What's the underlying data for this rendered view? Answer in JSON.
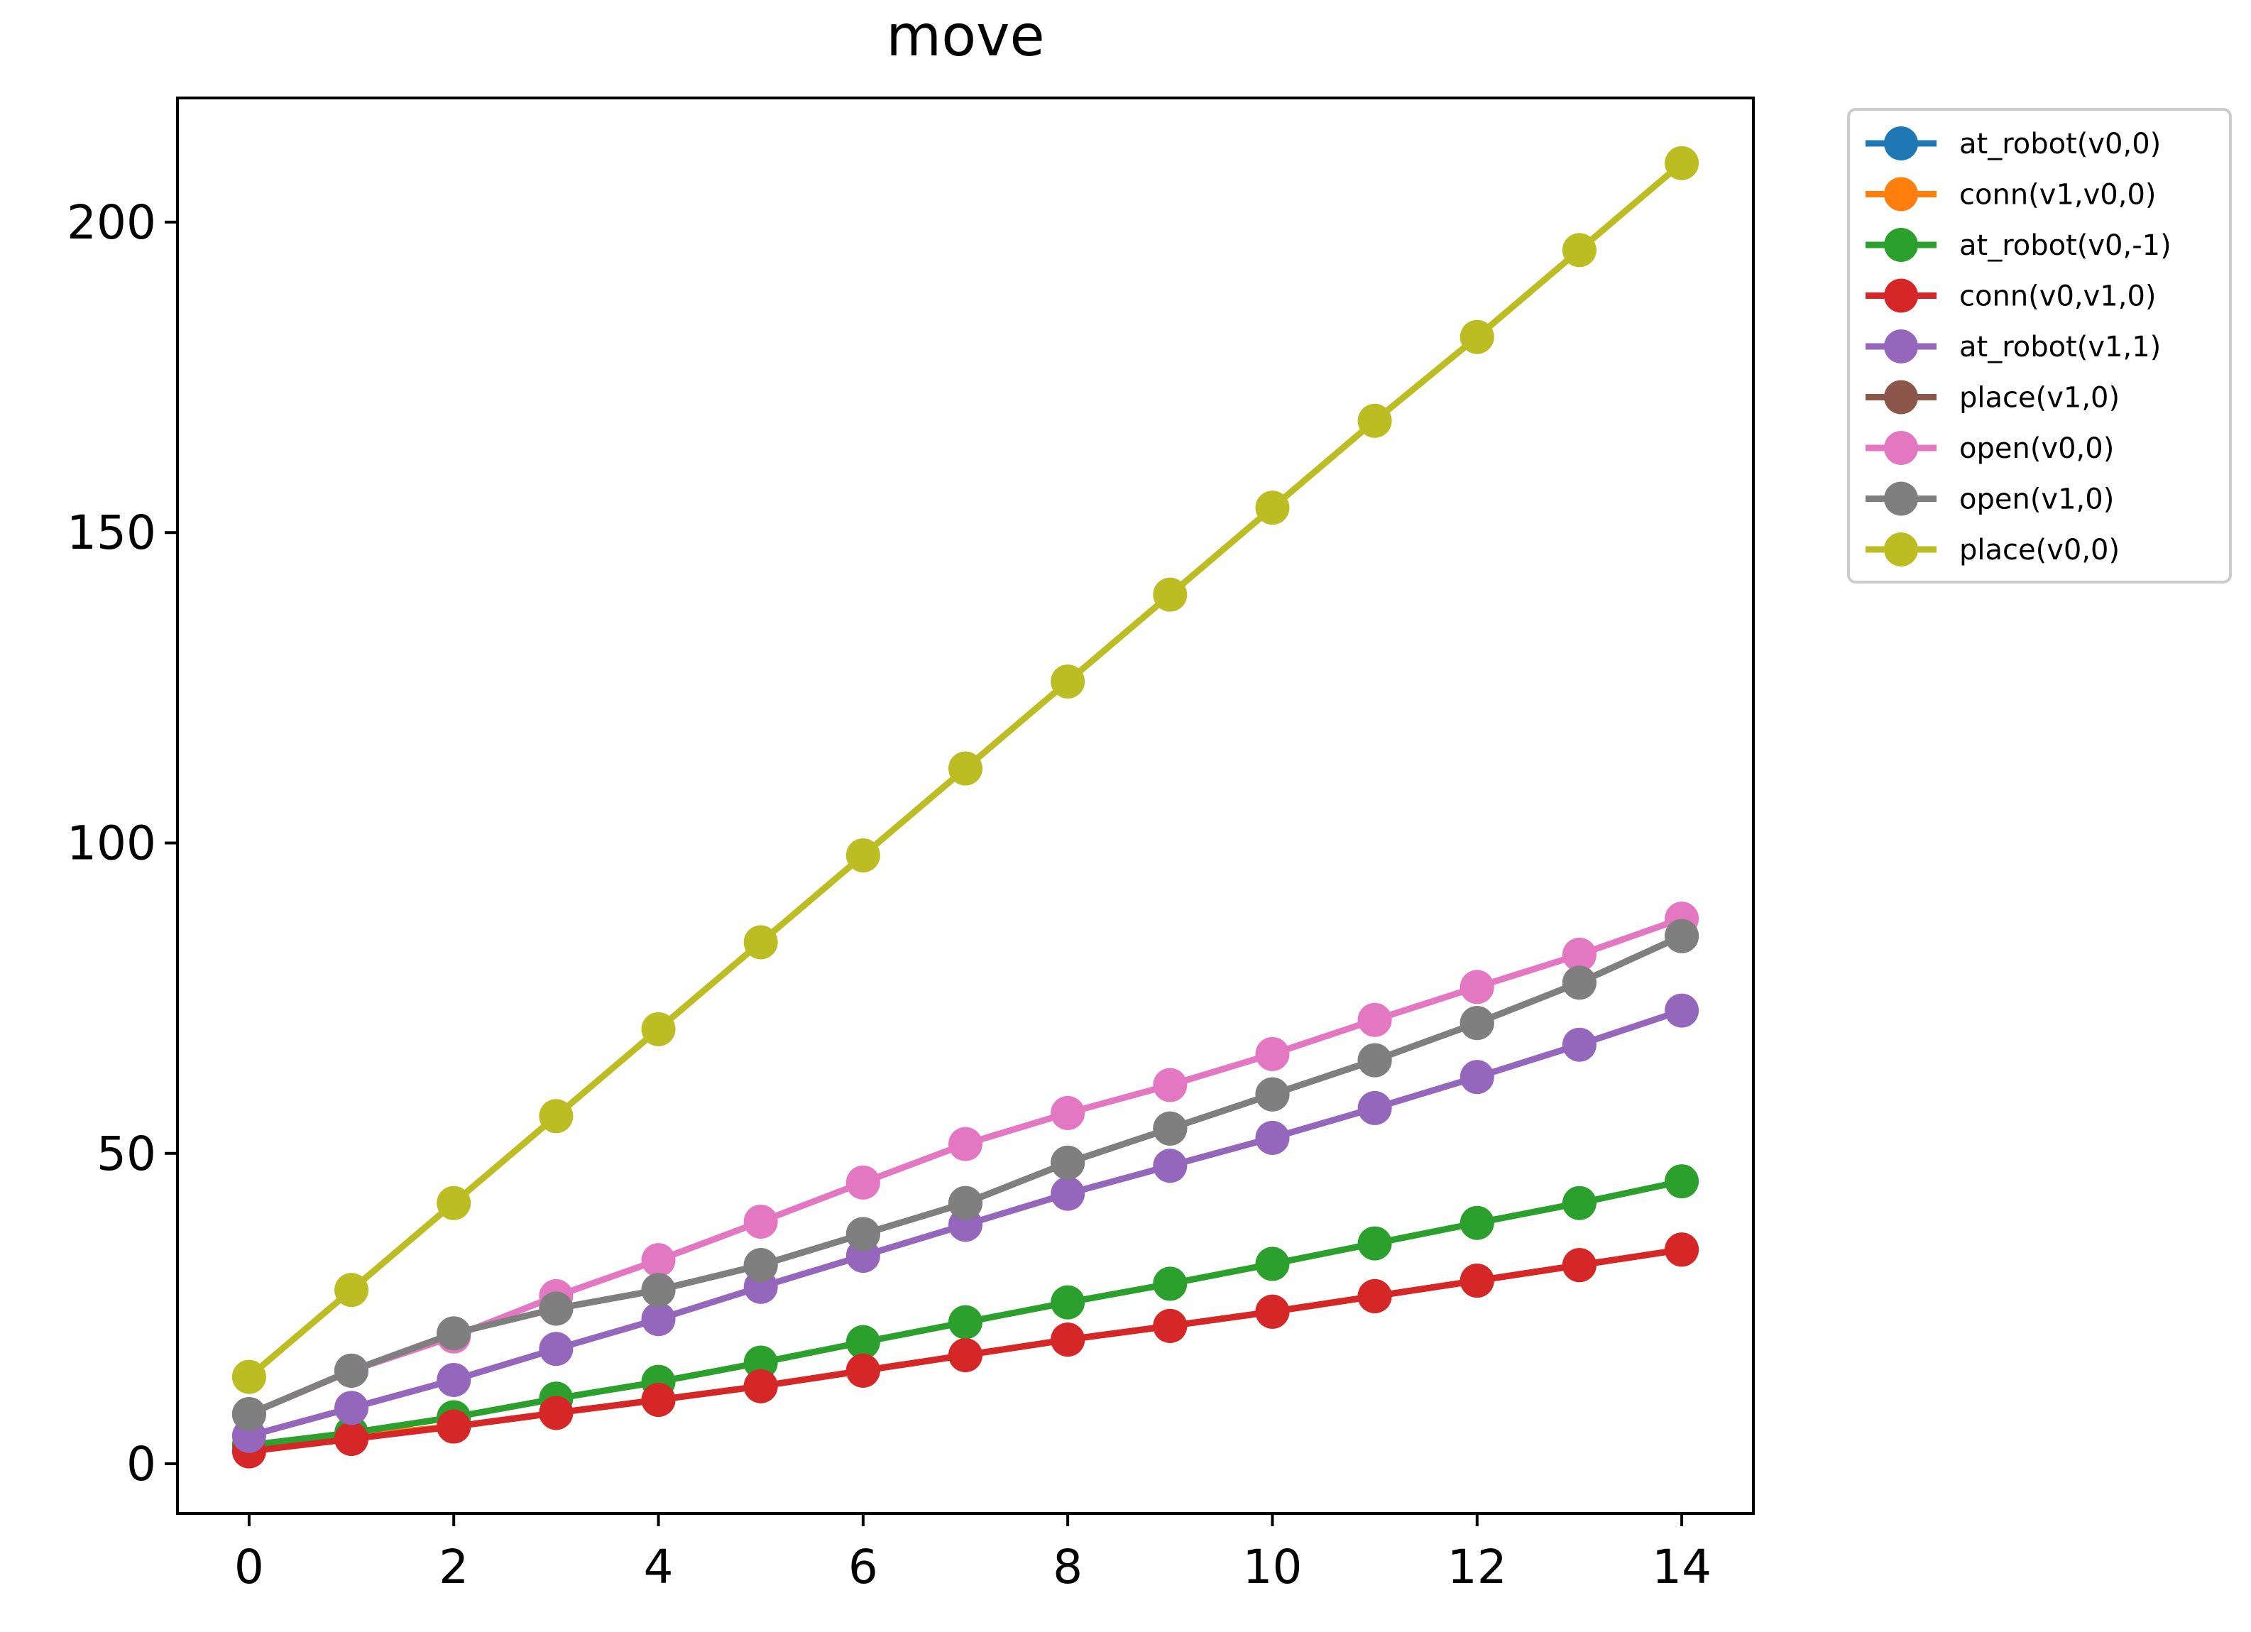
{
  "chart_data": {
    "type": "line",
    "title": "move",
    "xlabel": "",
    "ylabel": "",
    "xlim": [
      -0.7,
      14.7
    ],
    "ylim": [
      -8,
      220
    ],
    "x_ticks": [
      0,
      2,
      4,
      6,
      8,
      10,
      12,
      14
    ],
    "y_ticks": [
      0,
      50,
      100,
      150,
      200
    ],
    "grid": false,
    "legend_position": "outside-top-right",
    "x": [
      0,
      1,
      2,
      3,
      4,
      5,
      6,
      7,
      8,
      9,
      10,
      11,
      12,
      13,
      14
    ],
    "series": [
      {
        "name": "at_robot(v0,0)",
        "color": "#1f77b4",
        "values": [
          3,
          4.5,
          6,
          8.2,
          10.3,
          12.5,
          15,
          17.5,
          20,
          22.2,
          24.5,
          27,
          29.5,
          32,
          34.5
        ]
      },
      {
        "name": "conn(v1,v0,0)",
        "color": "#ff7f0e",
        "values": [
          3,
          4.5,
          6,
          8.2,
          10.3,
          12.5,
          15,
          17.5,
          20,
          22.2,
          24.5,
          27,
          29.5,
          32,
          34.5
        ]
      },
      {
        "name": "at_robot(v0,-1)",
        "color": "#2ca02c",
        "values": [
          3,
          5,
          7.5,
          10.5,
          13.2,
          16.3,
          19.6,
          22.8,
          26,
          29,
          32.2,
          35.5,
          38.8,
          42,
          45.5
        ]
      },
      {
        "name": "conn(v0,v1,0)",
        "color": "#d62728",
        "values": [
          2,
          4,
          6,
          8.2,
          10.3,
          12.5,
          15,
          17.5,
          20,
          22.2,
          24.5,
          27,
          29.5,
          32,
          34.5
        ]
      },
      {
        "name": "at_robot(v1,1)",
        "color": "#9467bd",
        "values": [
          4.5,
          9,
          13.5,
          18.5,
          23.3,
          28.5,
          33.5,
          38.5,
          43.5,
          48,
          52.5,
          57.3,
          62.3,
          67.5,
          73
        ]
      },
      {
        "name": "place(v1,0)",
        "color": "#8c564b",
        "values": [
          8,
          15,
          21,
          25,
          28,
          32,
          37,
          42,
          48.5,
          54,
          59.5,
          65,
          71,
          77.5,
          85
        ]
      },
      {
        "name": "open(v0,0)",
        "color": "#e377c2",
        "values": [
          8,
          15,
          20.5,
          27,
          32.8,
          39,
          45.3,
          51.5,
          56.5,
          61,
          66,
          71.5,
          76.8,
          82,
          87.8
        ]
      },
      {
        "name": "open(v1,0)",
        "color": "#7f7f7f",
        "values": [
          8,
          15,
          21,
          25,
          28,
          32,
          37,
          42,
          48.5,
          54,
          59.5,
          65,
          71,
          77.5,
          85
        ]
      },
      {
        "name": "place(v0,0)",
        "color": "#bcbd22",
        "values": [
          14,
          28,
          42,
          56,
          70,
          84,
          98,
          112,
          126,
          140,
          154,
          168,
          181.5,
          195.5,
          209.5
        ]
      }
    ]
  }
}
